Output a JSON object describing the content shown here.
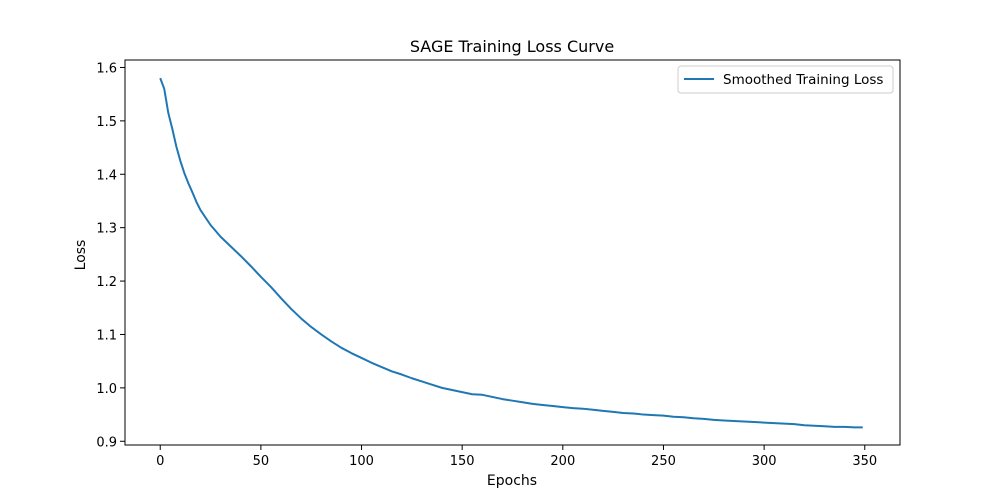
{
  "chart_data": {
    "type": "line",
    "title": "SAGE Training Loss Curve",
    "xlabel": "Epochs",
    "ylabel": "Loss",
    "xlim": [
      -17.5,
      367.5
    ],
    "ylim": [
      0.893,
      1.614
    ],
    "grid": false,
    "legend_position": "top-right",
    "x_ticks": [
      0,
      50,
      100,
      150,
      200,
      250,
      300,
      350
    ],
    "y_ticks": [
      0.9,
      1.0,
      1.1,
      1.2,
      1.3,
      1.4,
      1.5,
      1.6
    ],
    "x_tick_labels": [
      "0",
      "50",
      "100",
      "150",
      "200",
      "250",
      "300",
      "350"
    ],
    "y_tick_labels": [
      "0.9",
      "1.0",
      "1.1",
      "1.2",
      "1.3",
      "1.4",
      "1.5",
      "1.6"
    ],
    "series": [
      {
        "name": "Smoothed Training Loss",
        "color": "#1f77b4",
        "points": [
          [
            0,
            1.58
          ],
          [
            2,
            1.56
          ],
          [
            4,
            1.515
          ],
          [
            6,
            1.485
          ],
          [
            8,
            1.452
          ],
          [
            10,
            1.425
          ],
          [
            12,
            1.402
          ],
          [
            14,
            1.383
          ],
          [
            16,
            1.366
          ],
          [
            18,
            1.348
          ],
          [
            20,
            1.333
          ],
          [
            25,
            1.305
          ],
          [
            30,
            1.283
          ],
          [
            35,
            1.265
          ],
          [
            40,
            1.247
          ],
          [
            45,
            1.228
          ],
          [
            50,
            1.208
          ],
          [
            55,
            1.189
          ],
          [
            60,
            1.168
          ],
          [
            65,
            1.148
          ],
          [
            70,
            1.13
          ],
          [
            75,
            1.114
          ],
          [
            80,
            1.1
          ],
          [
            85,
            1.087
          ],
          [
            90,
            1.075
          ],
          [
            95,
            1.065
          ],
          [
            100,
            1.056
          ],
          [
            105,
            1.047
          ],
          [
            110,
            1.039
          ],
          [
            115,
            1.031
          ],
          [
            120,
            1.025
          ],
          [
            125,
            1.018
          ],
          [
            130,
            1.012
          ],
          [
            135,
            1.006
          ],
          [
            140,
            1.0
          ],
          [
            145,
            0.996
          ],
          [
            150,
            0.992
          ],
          [
            155,
            0.988
          ],
          [
            160,
            0.987
          ],
          [
            165,
            0.983
          ],
          [
            170,
            0.979
          ],
          [
            175,
            0.976
          ],
          [
            180,
            0.973
          ],
          [
            185,
            0.97
          ],
          [
            190,
            0.968
          ],
          [
            195,
            0.966
          ],
          [
            200,
            0.964
          ],
          [
            205,
            0.962
          ],
          [
            210,
            0.961
          ],
          [
            215,
            0.959
          ],
          [
            220,
            0.957
          ],
          [
            225,
            0.955
          ],
          [
            230,
            0.953
          ],
          [
            235,
            0.952
          ],
          [
            240,
            0.95
          ],
          [
            245,
            0.949
          ],
          [
            250,
            0.948
          ],
          [
            255,
            0.946
          ],
          [
            260,
            0.945
          ],
          [
            265,
            0.943
          ],
          [
            270,
            0.942
          ],
          [
            275,
            0.94
          ],
          [
            280,
            0.939
          ],
          [
            285,
            0.938
          ],
          [
            290,
            0.937
          ],
          [
            295,
            0.936
          ],
          [
            300,
            0.935
          ],
          [
            305,
            0.934
          ],
          [
            310,
            0.933
          ],
          [
            315,
            0.932
          ],
          [
            320,
            0.93
          ],
          [
            325,
            0.929
          ],
          [
            330,
            0.928
          ],
          [
            335,
            0.927
          ],
          [
            340,
            0.927
          ],
          [
            345,
            0.926
          ],
          [
            349,
            0.926
          ]
        ]
      }
    ]
  }
}
